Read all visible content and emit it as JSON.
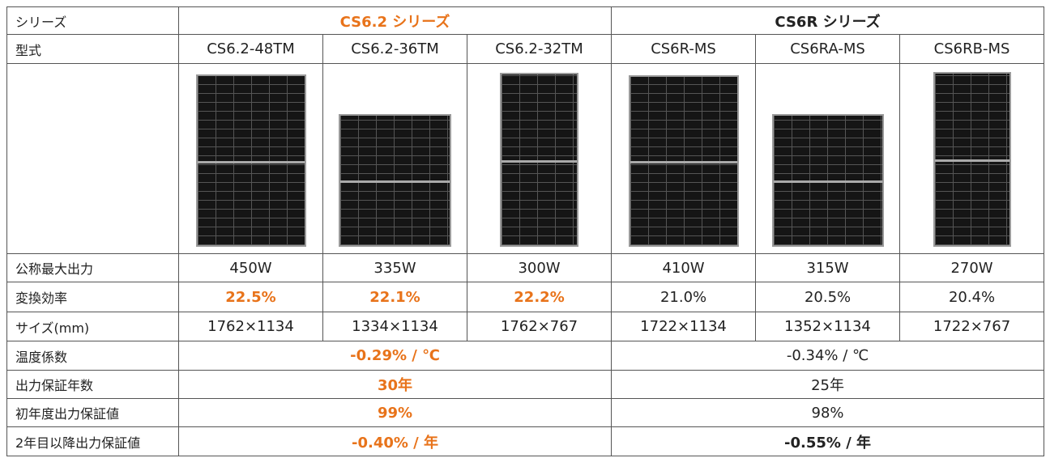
{
  "header": {
    "label": "シリーズ",
    "series": [
      "CS6.2 シリーズ",
      "CS6R シリーズ"
    ]
  },
  "models": {
    "label": "型式",
    "values": [
      "CS6.2-48TM",
      "CS6.2-36TM",
      "CS6.2-32TM",
      "CS6R-MS",
      "CS6RA-MS",
      "CS6RB-MS"
    ]
  },
  "rows": [
    {
      "label": "公称最大出力",
      "values": [
        "450W",
        "335W",
        "300W",
        "410W",
        "315W",
        "270W"
      ]
    },
    {
      "label": "変換効率",
      "values": [
        "22.5%",
        "22.1%",
        "22.2%",
        "21.0%",
        "20.5%",
        "20.4%"
      ]
    },
    {
      "label": "サイズ(mm)",
      "values": [
        "1762×1134",
        "1334×1134",
        "1762×767",
        "1722×1134",
        "1352×1134",
        "1722×767"
      ]
    }
  ],
  "merged_rows": [
    {
      "label": "温度係数",
      "values": [
        "-0.29% / ℃",
        "-0.34% / ℃"
      ]
    },
    {
      "label": "出力保証年数",
      "values": [
        "30年",
        "25年"
      ]
    },
    {
      "label": "初年度出力保証値",
      "values": [
        "99%",
        "98%"
      ]
    },
    {
      "label": "2年目以降出力保証値",
      "values": [
        "-0.40% / 年",
        "-0.55% / 年"
      ]
    }
  ]
}
